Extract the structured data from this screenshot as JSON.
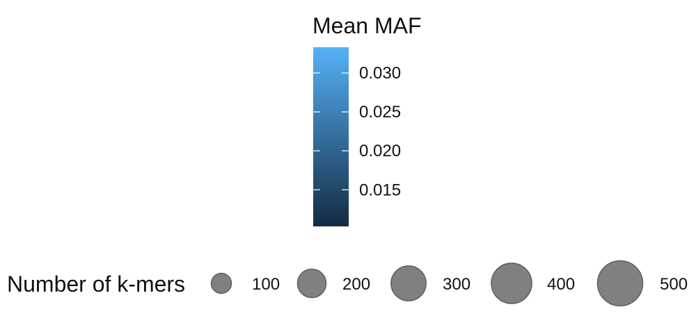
{
  "chart_data": {
    "type": "legend",
    "color_legend": {
      "title": "Mean MAF",
      "range": [
        0.0103,
        0.0333
      ],
      "ticks": [
        0.015,
        0.02,
        0.025,
        0.03
      ],
      "tick_labels": [
        "0.015",
        "0.020",
        "0.025",
        "0.030"
      ],
      "color_low": "#132B43",
      "color_high": "#56B1F7"
    },
    "size_legend": {
      "title": "Number of k-mers",
      "values": [
        100,
        200,
        300,
        400,
        500
      ],
      "labels": [
        "100",
        "200",
        "300",
        "400",
        "500"
      ],
      "fill_color": "#808080",
      "stroke_color": "#5f5f5f"
    }
  }
}
